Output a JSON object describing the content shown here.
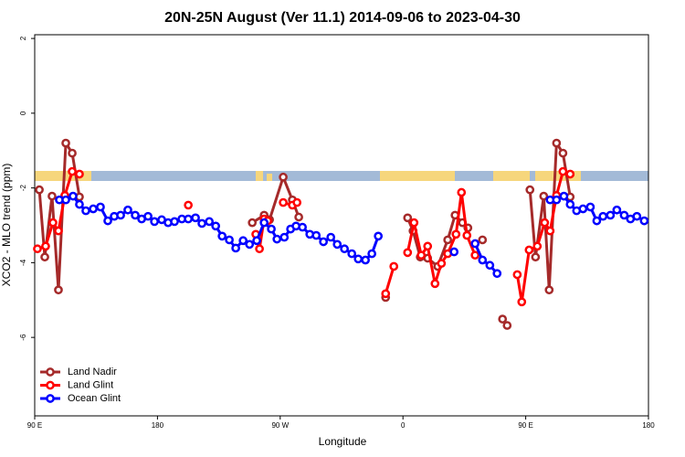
{
  "chart_data": {
    "type": "line",
    "title": "20N-25N August (Ver 11.1)   2014-09-06 to 2023-04-30",
    "xlabel": "Longitude",
    "ylabel": "XCO2 - MLO trend (ppm)",
    "xlim": [
      90,
      540
    ],
    "ylim": [
      -8.1,
      2.1
    ],
    "xticks": [
      {
        "value": 90,
        "label": "90 E"
      },
      180,
      {
        "value": 270,
        "label": "90 W"
      },
      {
        "value": 360,
        "label": "0"
      },
      {
        "value": 450,
        "label": "90 E"
      },
      {
        "value": 540,
        "label": "180"
      }
    ],
    "yticks": [
      2,
      0,
      -2,
      -4,
      -6
    ],
    "legend": "bottom-left",
    "series": [
      {
        "name": "Land Nadir",
        "color": "#a52a2a",
        "x": [
          93.4,
          97.4,
          102.7,
          107.4,
          112.8,
          117.5,
          122.8,
          null,
          249.5,
          258.2,
          262.2,
          272.2,
          278.9,
          283.6,
          null,
          347.3,
          null,
          363.4,
          367.4,
          372.7,
          378.1,
          385.5,
          392.8,
          398.2,
          403.6,
          407.6,
          null,
          418.3,
          null,
          433.0,
          436.4,
          null,
          453.1,
          457.2,
          463.2,
          467.2,
          472.6,
          477.3,
          482.6
        ],
        "values": [
          -2.05,
          -3.85,
          -2.22,
          -4.73,
          -0.8,
          -1.07,
          -2.24,
          null,
          -2.93,
          -2.73,
          -2.85,
          -1.71,
          -2.32,
          -2.78,
          null,
          -4.93,
          null,
          -2.8,
          -3.15,
          -3.85,
          -3.88,
          -4.1,
          -3.39,
          -2.73,
          -2.93,
          -3.07,
          null,
          -3.39,
          null,
          -5.51,
          -5.68,
          null,
          -2.05,
          -3.85,
          -2.22,
          -4.73,
          -0.8,
          -1.07,
          -2.24
        ]
      },
      {
        "name": "Land Glint",
        "color": "#ff0000",
        "x": [
          92.0,
          98.0,
          103.4,
          107.4,
          112.1,
          117.5,
          122.8,
          null,
          202.6,
          null,
          252.1,
          254.8,
          258.2,
          260.9,
          null,
          272.2,
          278.9,
          282.3,
          null,
          347.3,
          353.3,
          null,
          363.4,
          368.1,
          373.4,
          378.1,
          383.5,
          388.2,
          392.8,
          398.9,
          402.9,
          406.9,
          412.9,
          null,
          443.8,
          447.1,
          452.5,
          458.5,
          463.9,
          467.9,
          472.6,
          477.3,
          482.6
        ],
        "values": [
          -3.63,
          -3.56,
          -2.93,
          -3.15,
          -2.2,
          -1.56,
          -1.63,
          null,
          -2.46,
          null,
          -3.24,
          -3.63,
          -2.83,
          -2.88,
          null,
          -2.39,
          -2.46,
          -2.39,
          null,
          -4.83,
          -4.1,
          null,
          -3.73,
          -2.93,
          -3.8,
          -3.56,
          -4.56,
          -4.02,
          -3.76,
          -3.24,
          -2.12,
          -3.27,
          -3.8,
          null,
          -4.32,
          -5.05,
          -3.66,
          -3.56,
          -2.93,
          -3.15,
          -2.2,
          -1.56,
          -1.63
        ]
      },
      {
        "name": "Ocean Glint",
        "color": "#0000ff",
        "x": [
          108.1,
          112.8,
          118.1,
          122.8,
          127.5,
          132.9,
          138.2,
          143.6,
          148.3,
          153.0,
          158.3,
          163.7,
          168.4,
          173.1,
          177.8,
          183.1,
          187.8,
          192.5,
          197.9,
          202.6,
          207.9,
          212.6,
          218.0,
          222.7,
          227.4,
          232.7,
          237.4,
          242.8,
          247.5,
          252.8,
          258.2,
          263.5,
          267.6,
          273.0,
          277.6,
          281.6,
          286.3,
          291.7,
          296.4,
          301.7,
          307.1,
          311.8,
          317.1,
          322.5,
          327.2,
          332.5,
          337.2,
          341.9,
          null,
          397.5,
          null,
          412.9,
          418.3,
          423.7,
          429.0,
          null,
          467.9,
          472.6,
          478.0,
          482.6,
          487.3,
          492.0,
          497.4,
          502.1,
          506.7,
          512.1,
          516.8,
          522.2,
          526.8,
          531.5,
          536.9
        ],
        "values": [
          -2.32,
          -2.32,
          -2.22,
          -2.44,
          -2.61,
          -2.56,
          -2.51,
          -2.88,
          -2.76,
          -2.73,
          -2.59,
          -2.73,
          -2.83,
          -2.76,
          -2.9,
          -2.85,
          -2.93,
          -2.9,
          -2.83,
          -2.83,
          -2.8,
          -2.95,
          -2.9,
          -3.02,
          -3.29,
          -3.39,
          -3.61,
          -3.41,
          -3.51,
          -3.41,
          -2.93,
          -3.1,
          -3.37,
          -3.32,
          -3.1,
          -3.02,
          -3.05,
          -3.24,
          -3.27,
          -3.44,
          -3.32,
          -3.51,
          -3.63,
          -3.76,
          -3.9,
          -3.93,
          -3.76,
          -3.29,
          null,
          -3.71,
          null,
          -3.49,
          -3.93,
          -4.07,
          -4.29,
          null,
          -2.32,
          -2.32,
          -2.22,
          -2.44,
          -2.61,
          -2.56,
          -2.51,
          -2.88,
          -2.76,
          -2.73,
          -2.59,
          -2.73,
          -2.83,
          -2.76,
          -2.88
        ]
      }
    ]
  }
}
